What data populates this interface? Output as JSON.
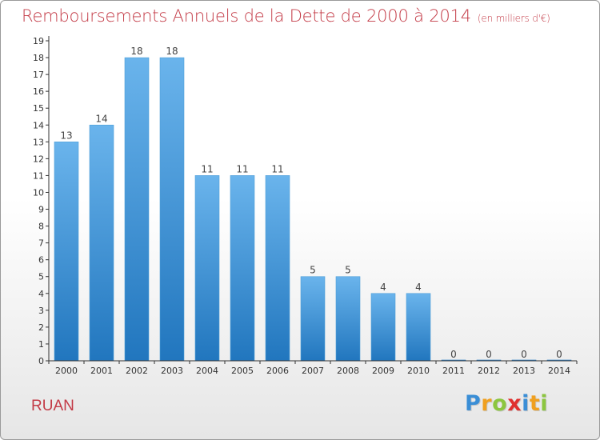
{
  "header": {
    "title": "Remboursements Annuels de la Dette de 2000 à 2014",
    "subtitle": "(en milliers d'€)"
  },
  "footer": {
    "commune": "RUAN",
    "logo_letters": [
      "P",
      "r",
      "o",
      "x",
      "i",
      "t",
      "i"
    ],
    "logo_colors": [
      "#3a8ed6",
      "#f0a020",
      "#8cc63f",
      "#e0302e",
      "#3a8ed6",
      "#f0a020",
      "#8cc63f"
    ]
  },
  "colors": {
    "bar_light": "#6ab4ec",
    "bar_dark": "#2176be",
    "title": "#c33a46",
    "axis": "#333333"
  },
  "chart_data": {
    "type": "bar",
    "categories": [
      "2000",
      "2001",
      "2002",
      "2003",
      "2004",
      "2005",
      "2006",
      "2007",
      "2008",
      "2009",
      "2010",
      "2011",
      "2012",
      "2013",
      "2014"
    ],
    "values": [
      13,
      14,
      18,
      18,
      11,
      11,
      11,
      5,
      5,
      4,
      4,
      0,
      0,
      0,
      0
    ],
    "value_labels": [
      "13",
      "14",
      "18",
      "18",
      "11",
      "11",
      "11",
      "5",
      "5",
      "4",
      "4",
      "0",
      "0",
      "0",
      "0"
    ],
    "y_ticks": [
      0,
      1,
      2,
      3,
      4,
      5,
      6,
      7,
      8,
      9,
      10,
      11,
      12,
      13,
      14,
      15,
      16,
      17,
      18,
      19
    ],
    "ylim": [
      0,
      19
    ],
    "title": "Remboursements Annuels de la Dette de 2000 à 2014",
    "xlabel": "",
    "ylabel": "",
    "grid": false,
    "legend": "none"
  }
}
